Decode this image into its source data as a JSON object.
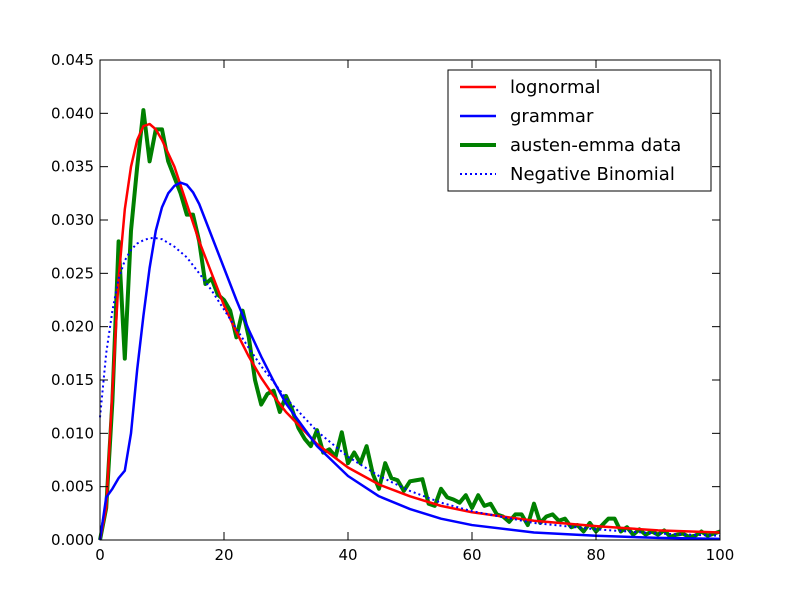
{
  "chart_data": {
    "type": "line",
    "xlim": [
      0,
      100
    ],
    "ylim": [
      0,
      0.045
    ],
    "x_ticks": [
      "0",
      "20",
      "40",
      "60",
      "80",
      "100"
    ],
    "y_ticks": [
      "0.000",
      "0.005",
      "0.010",
      "0.015",
      "0.020",
      "0.025",
      "0.030",
      "0.035",
      "0.040",
      "0.045"
    ],
    "grid": false,
    "legend_position": "top-right",
    "series": [
      {
        "name": "lognormal",
        "color": "#ff0000",
        "style": "solid",
        "x": [
          0,
          1,
          2,
          3,
          4,
          5,
          6,
          7,
          8,
          9,
          10,
          12,
          14,
          16,
          18,
          20,
          22,
          24,
          26,
          28,
          30,
          35,
          40,
          45,
          50,
          55,
          60,
          70,
          80,
          90,
          100
        ],
        "y": [
          0.0,
          0.003,
          0.014,
          0.0245,
          0.031,
          0.035,
          0.0375,
          0.0388,
          0.039,
          0.0385,
          0.0375,
          0.035,
          0.0315,
          0.028,
          0.025,
          0.022,
          0.0195,
          0.0172,
          0.0152,
          0.0135,
          0.012,
          0.009,
          0.0068,
          0.0052,
          0.0041,
          0.0032,
          0.0026,
          0.0018,
          0.0013,
          0.0009,
          0.0007
        ]
      },
      {
        "name": "grammar",
        "color": "#0000ff",
        "style": "solid",
        "x": [
          0,
          1,
          2,
          3,
          4,
          5,
          6,
          7,
          8,
          9,
          10,
          11,
          12,
          13,
          14,
          15,
          16,
          18,
          20,
          22,
          24,
          26,
          28,
          30,
          35,
          40,
          45,
          50,
          55,
          60,
          70,
          80,
          90,
          100
        ],
        "y": [
          0.0,
          0.004,
          0.0048,
          0.0058,
          0.0065,
          0.01,
          0.016,
          0.021,
          0.0255,
          0.029,
          0.0312,
          0.0325,
          0.0332,
          0.0335,
          0.0333,
          0.0326,
          0.0315,
          0.0285,
          0.0255,
          0.0225,
          0.0197,
          0.0172,
          0.0149,
          0.0128,
          0.0088,
          0.006,
          0.0041,
          0.0029,
          0.002,
          0.0014,
          0.0007,
          0.0004,
          0.0002,
          0.0001
        ]
      },
      {
        "name": "austen-emma data",
        "color": "#008000",
        "style": "thick",
        "x": [
          0,
          1,
          2,
          3,
          4,
          5,
          6,
          7,
          8,
          9,
          10,
          11,
          12,
          13,
          14,
          15,
          16,
          17,
          18,
          19,
          20,
          21,
          22,
          23,
          24,
          25,
          26,
          27,
          28,
          29,
          30,
          31,
          32,
          33,
          34,
          35,
          36,
          37,
          38,
          39,
          40,
          41,
          42,
          43,
          44,
          45,
          46,
          47,
          48,
          49,
          50,
          51,
          52,
          53,
          54,
          55,
          56,
          57,
          58,
          59,
          60,
          61,
          62,
          63,
          64,
          65,
          66,
          67,
          68,
          69,
          70,
          71,
          72,
          73,
          74,
          75,
          76,
          77,
          78,
          79,
          80,
          81,
          82,
          83,
          84,
          85,
          86,
          87,
          88,
          89,
          90,
          91,
          92,
          93,
          94,
          95,
          96,
          97,
          98,
          99,
          100
        ],
        "y": [
          0.0,
          0.003,
          0.013,
          0.028,
          0.017,
          0.029,
          0.035,
          0.0403,
          0.0355,
          0.0385,
          0.0385,
          0.0355,
          0.034,
          0.0325,
          0.0305,
          0.0305,
          0.028,
          0.024,
          0.0245,
          0.023,
          0.0225,
          0.0215,
          0.019,
          0.0215,
          0.019,
          0.015,
          0.0127,
          0.0137,
          0.014,
          0.012,
          0.0135,
          0.0122,
          0.0105,
          0.0095,
          0.0088,
          0.0103,
          0.0082,
          0.0085,
          0.0078,
          0.0101,
          0.0072,
          0.0082,
          0.0072,
          0.0088,
          0.0062,
          0.0048,
          0.0072,
          0.0058,
          0.0056,
          0.0046,
          0.0055,
          0.0056,
          0.0057,
          0.0034,
          0.0032,
          0.0048,
          0.004,
          0.0038,
          0.0035,
          0.0042,
          0.003,
          0.0042,
          0.0032,
          0.0034,
          0.0024,
          0.0022,
          0.0017,
          0.0024,
          0.0024,
          0.0014,
          0.0034,
          0.0016,
          0.0022,
          0.0024,
          0.0018,
          0.002,
          0.0012,
          0.0014,
          0.0008,
          0.0016,
          0.0008,
          0.0014,
          0.002,
          0.002,
          0.0008,
          0.0012,
          0.0005,
          0.001,
          0.0005,
          0.0008,
          0.0005,
          0.0009,
          0.0003,
          0.0005,
          0.0006,
          0.0003,
          0.0004,
          0.0008,
          0.0004,
          0.0006,
          0.0008
        ]
      },
      {
        "name": "Negative Binomial",
        "color": "#0000ff",
        "style": "dotted",
        "x": [
          0,
          1,
          2,
          3,
          4,
          5,
          6,
          7,
          8,
          9,
          10,
          12,
          14,
          16,
          18,
          20,
          22,
          24,
          26,
          28,
          30,
          35,
          40,
          45,
          50,
          55,
          60,
          70,
          80,
          90,
          100
        ],
        "y": [
          0.0115,
          0.0175,
          0.0215,
          0.0245,
          0.0262,
          0.0272,
          0.0278,
          0.0281,
          0.0283,
          0.0283,
          0.0282,
          0.0275,
          0.0265,
          0.025,
          0.0234,
          0.0216,
          0.0198,
          0.018,
          0.0163,
          0.0148,
          0.0133,
          0.0102,
          0.0078,
          0.006,
          0.0046,
          0.0035,
          0.0027,
          0.0016,
          0.001,
          0.0006,
          0.0004
        ]
      }
    ]
  }
}
